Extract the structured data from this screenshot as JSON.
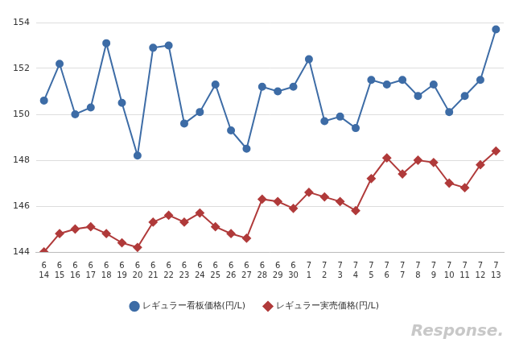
{
  "chart_data": {
    "type": "line",
    "categories": [
      [
        "6",
        "14"
      ],
      [
        "6",
        "15"
      ],
      [
        "6",
        "16"
      ],
      [
        "6",
        "17"
      ],
      [
        "6",
        "18"
      ],
      [
        "6",
        "19"
      ],
      [
        "6",
        "20"
      ],
      [
        "6",
        "21"
      ],
      [
        "6",
        "22"
      ],
      [
        "6",
        "23"
      ],
      [
        "6",
        "24"
      ],
      [
        "6",
        "25"
      ],
      [
        "6",
        "26"
      ],
      [
        "6",
        "27"
      ],
      [
        "6",
        "28"
      ],
      [
        "6",
        "29"
      ],
      [
        "6",
        "30"
      ],
      [
        "7",
        "1"
      ],
      [
        "7",
        "2"
      ],
      [
        "7",
        "3"
      ],
      [
        "7",
        "4"
      ],
      [
        "7",
        "5"
      ],
      [
        "7",
        "6"
      ],
      [
        "7",
        "7"
      ],
      [
        "7",
        "8"
      ],
      [
        "7",
        "9"
      ],
      [
        "7",
        "10"
      ],
      [
        "7",
        "11"
      ],
      [
        "7",
        "12"
      ],
      [
        "7",
        "13"
      ]
    ],
    "series": [
      {
        "name": "レギュラー看板価格(円/L)",
        "color": "#3d6ca6",
        "marker": "circle",
        "line_style": "solid",
        "values": [
          150.6,
          152.2,
          150.0,
          150.3,
          153.1,
          150.5,
          148.2,
          152.9,
          153.0,
          149.6,
          150.1,
          151.3,
          149.3,
          148.5,
          151.2,
          151.0,
          151.2,
          152.4,
          149.7,
          149.9,
          149.4,
          151.5,
          151.3,
          151.5,
          150.8,
          151.3,
          150.1,
          150.8,
          151.5,
          153.7
        ]
      },
      {
        "name": "レギュラー実売価格(円/L)",
        "color": "#b03a3a",
        "marker": "diamond",
        "line_style": "solid",
        "values": [
          144.0,
          144.8,
          145.0,
          145.1,
          144.8,
          144.4,
          144.2,
          145.3,
          145.6,
          145.3,
          145.7,
          145.1,
          144.8,
          144.6,
          146.3,
          146.2,
          145.9,
          146.6,
          146.4,
          146.2,
          145.8,
          147.2,
          148.1,
          147.4,
          148.0,
          147.9,
          147.0,
          146.8,
          147.8,
          148.4
        ]
      }
    ],
    "ylim": [
      144,
      154
    ],
    "yticks": [
      144,
      146,
      148,
      150,
      152,
      154
    ],
    "grid": true,
    "legend": "bottom",
    "annotations": [
      "Response."
    ]
  }
}
